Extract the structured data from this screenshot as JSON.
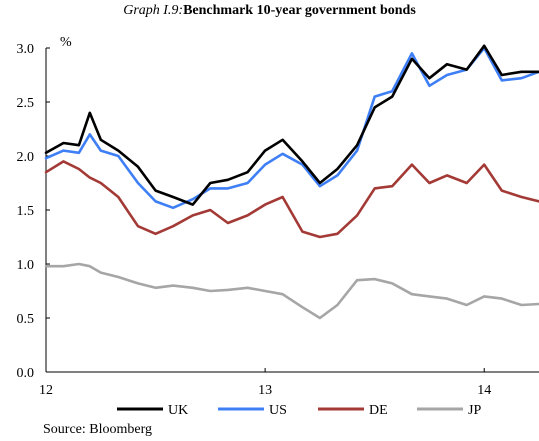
{
  "title_prefix": "Graph I.9:",
  "title_main": "Benchmark 10-year government bonds",
  "source": "Source: Bloomberg",
  "chart_data": {
    "type": "line",
    "title": "Graph I.9: Benchmark 10-year government bonds",
    "ylabel": "%",
    "xlabel": "",
    "xlim": [
      12.0,
      14.25
    ],
    "ylim": [
      0.0,
      3.0
    ],
    "x_ticks": [
      12,
      13,
      14
    ],
    "y_ticks": [
      0.0,
      0.5,
      1.0,
      1.5,
      2.0,
      2.5,
      3.0
    ],
    "x_tick_labels": [
      "12",
      "13",
      "14"
    ],
    "y_tick_labels": [
      "0.0",
      "0.5",
      "1.0",
      "1.5",
      "2.0",
      "2.5",
      "3.0"
    ],
    "grid": false,
    "legend_position": "bottom",
    "x": [
      12.0,
      12.08,
      12.15,
      12.2,
      12.25,
      12.33,
      12.42,
      12.5,
      12.58,
      12.67,
      12.75,
      12.83,
      12.92,
      13.0,
      13.08,
      13.17,
      13.25,
      13.33,
      13.42,
      13.5,
      13.58,
      13.67,
      13.75,
      13.83,
      13.92,
      14.0,
      14.08,
      14.17,
      14.25
    ],
    "series": [
      {
        "name": "UK",
        "color": "#000000",
        "values": [
          2.03,
          2.12,
          2.1,
          2.4,
          2.15,
          2.05,
          1.9,
          1.68,
          1.62,
          1.55,
          1.75,
          1.78,
          1.85,
          2.05,
          2.15,
          1.95,
          1.75,
          1.88,
          2.1,
          2.45,
          2.55,
          2.9,
          2.72,
          2.85,
          2.8,
          3.02,
          2.75,
          2.78,
          2.78
        ]
      },
      {
        "name": "US",
        "color": "#3f7ff5",
        "values": [
          1.98,
          2.05,
          2.03,
          2.2,
          2.05,
          2.0,
          1.75,
          1.58,
          1.52,
          1.6,
          1.7,
          1.7,
          1.75,
          1.92,
          2.02,
          1.92,
          1.72,
          1.82,
          2.05,
          2.55,
          2.6,
          2.95,
          2.65,
          2.75,
          2.8,
          3.0,
          2.7,
          2.72,
          2.78
        ]
      },
      {
        "name": "DE",
        "color": "#a33a36",
        "values": [
          1.85,
          1.95,
          1.88,
          1.8,
          1.75,
          1.62,
          1.35,
          1.28,
          1.35,
          1.45,
          1.5,
          1.38,
          1.45,
          1.55,
          1.62,
          1.3,
          1.25,
          1.28,
          1.45,
          1.7,
          1.72,
          1.92,
          1.75,
          1.82,
          1.75,
          1.92,
          1.68,
          1.62,
          1.58
        ]
      },
      {
        "name": "JP",
        "color": "#a6a6a6",
        "values": [
          0.98,
          0.98,
          1.0,
          0.98,
          0.92,
          0.88,
          0.82,
          0.78,
          0.8,
          0.78,
          0.75,
          0.76,
          0.78,
          0.75,
          0.72,
          0.6,
          0.5,
          0.62,
          0.85,
          0.86,
          0.82,
          0.72,
          0.7,
          0.68,
          0.62,
          0.7,
          0.68,
          0.62,
          0.63
        ]
      }
    ]
  }
}
